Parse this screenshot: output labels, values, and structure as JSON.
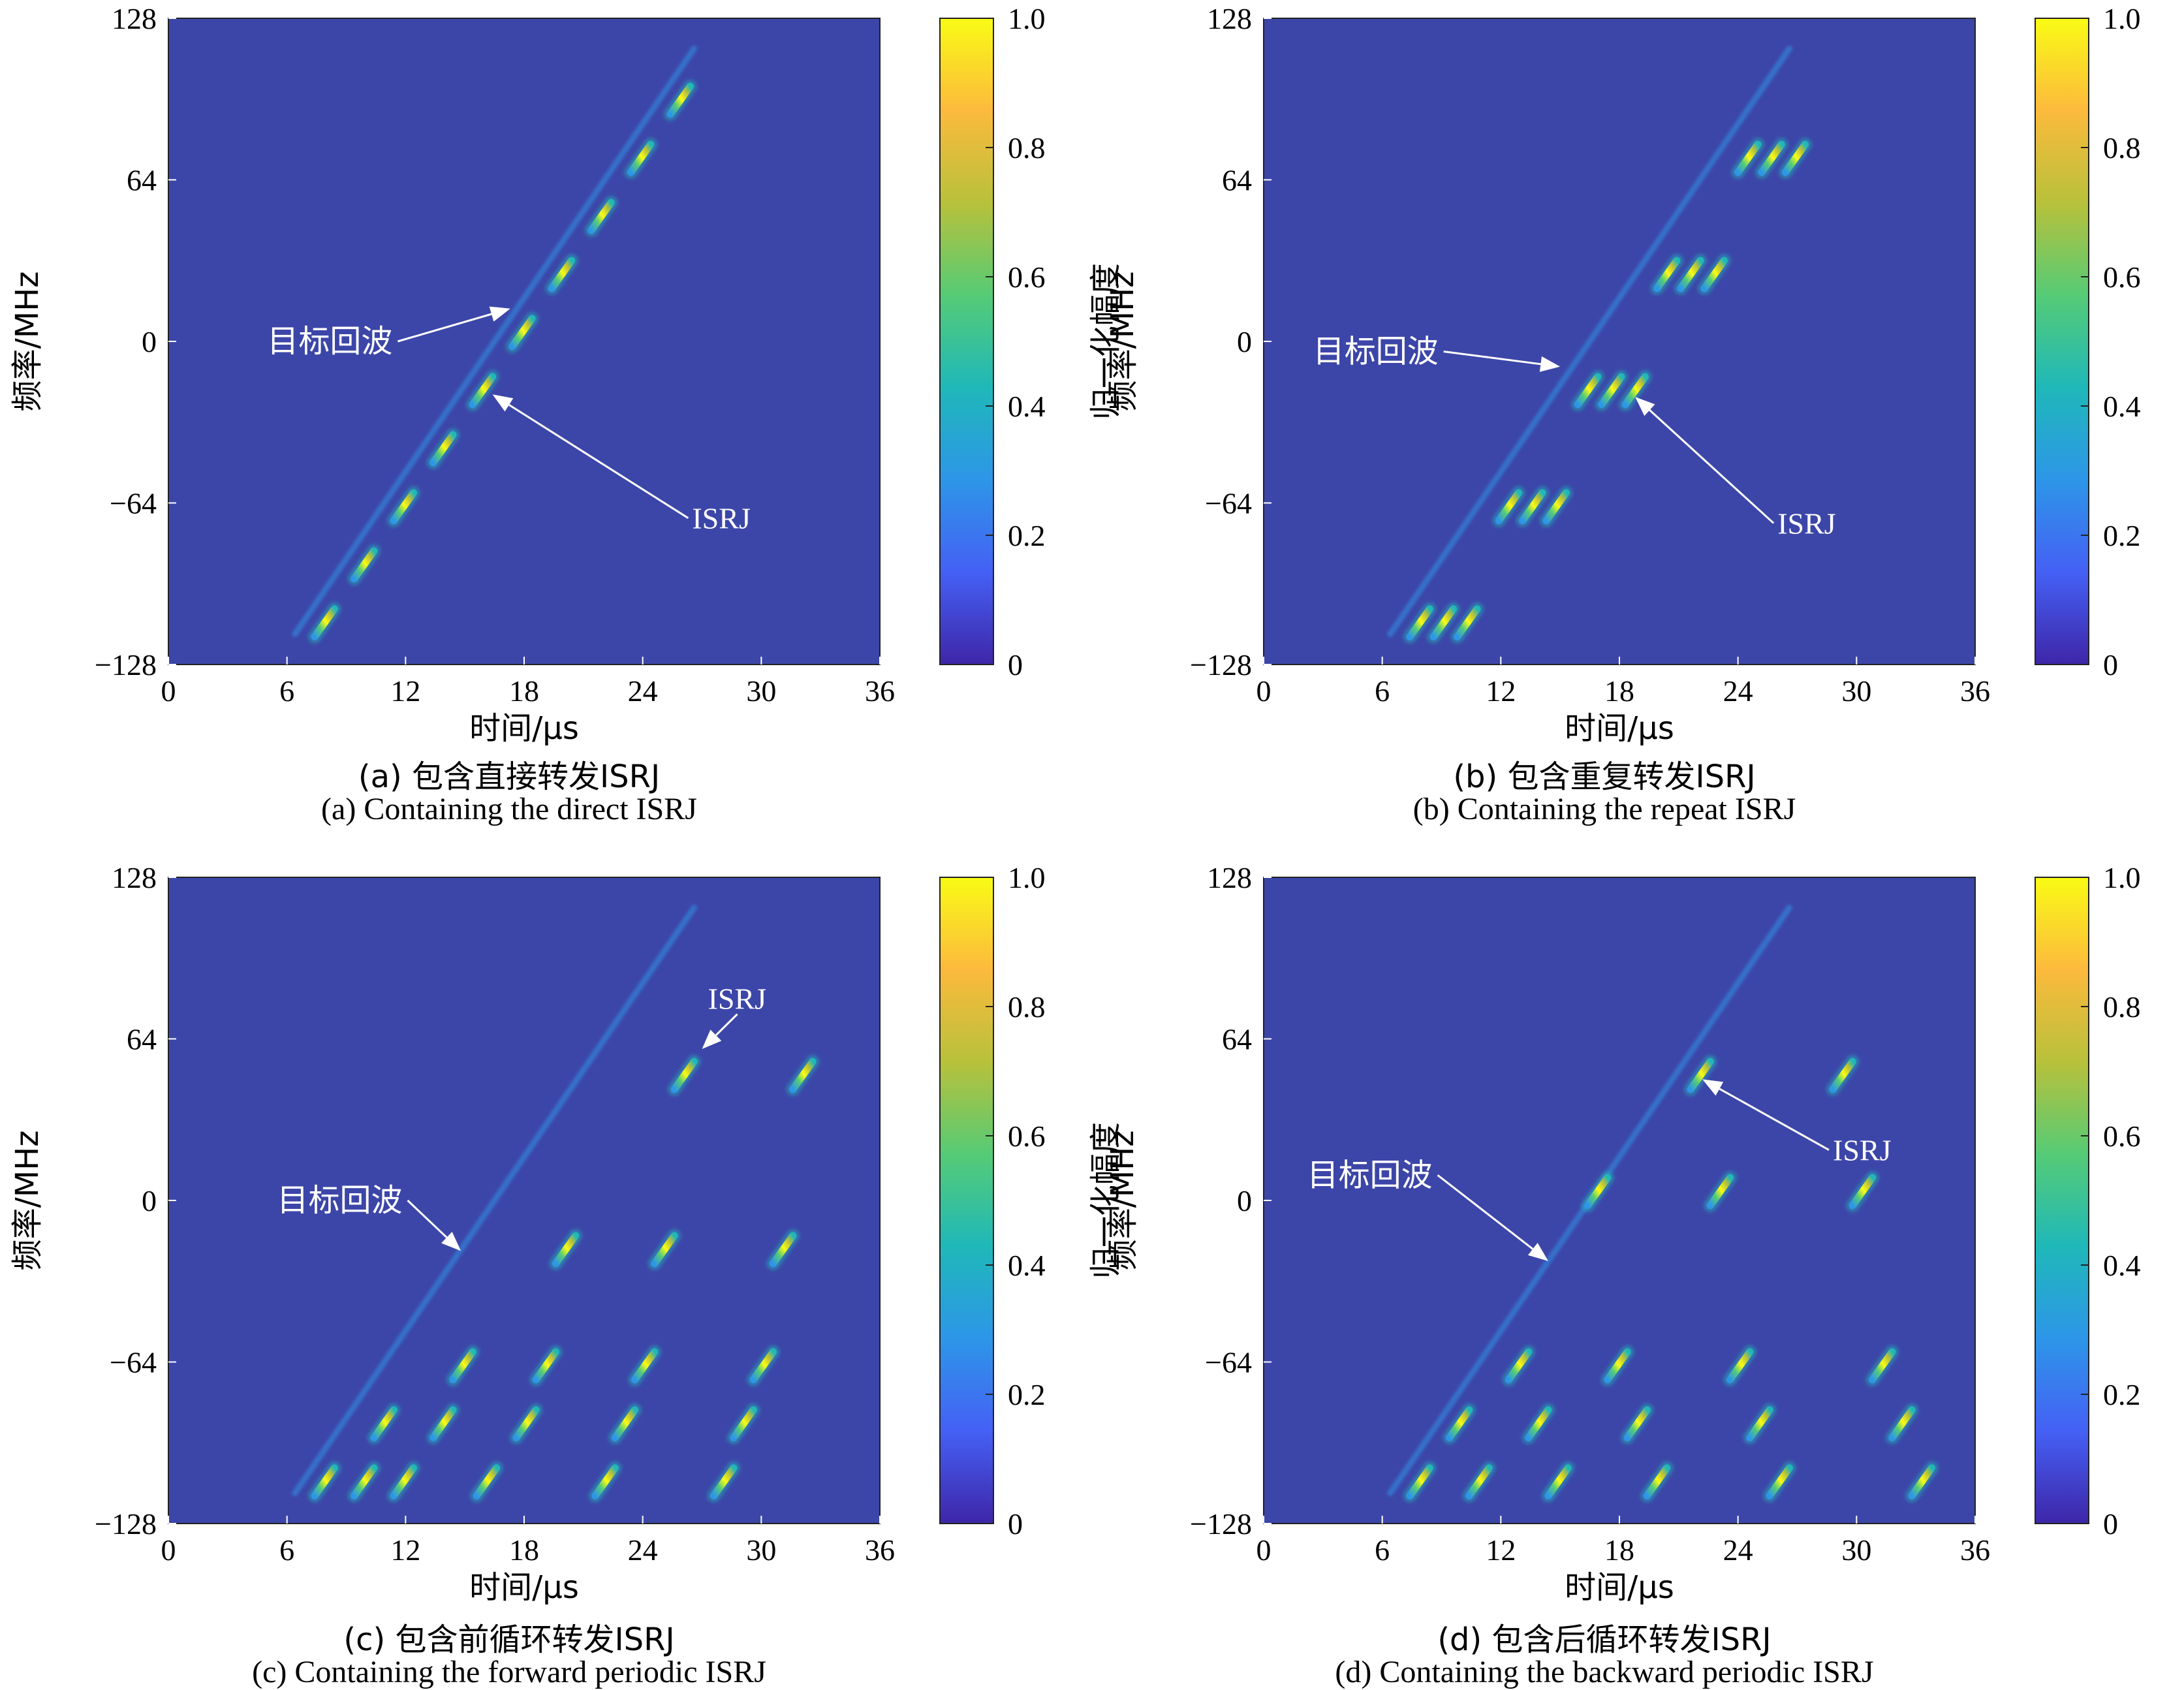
{
  "colors": {
    "background": "#3c46a8",
    "colormap": [
      "#3e26a8",
      "#4560f5",
      "#2d96e8",
      "#1fb8b9",
      "#55cb76",
      "#b8c13b",
      "#fcba3d",
      "#f9fb15"
    ]
  },
  "chart_data": [
    {
      "type": "heatmap",
      "subtitle_cn": "(a) 包含直接转发ISRJ",
      "subtitle_en": "(a) Containing the direct ISRJ",
      "xlabel": "时间/μs",
      "ylabel": "频率/MHz",
      "colorbar_label": "归一化幅度",
      "xlim": [
        0,
        36
      ],
      "ylim": [
        -128,
        128
      ],
      "xticks": [
        "0",
        "6",
        "12",
        "18",
        "24",
        "30",
        "36"
      ],
      "yticks": [
        "−128",
        "−64",
        "0",
        "64",
        "128"
      ],
      "colorbar_ticks": [
        "0",
        "0.2",
        "0.4",
        "0.6",
        "0.8",
        "1.0"
      ],
      "echo": {
        "x": [
          6.4,
          26.6
        ],
        "y": [
          -116,
          116
        ],
        "intensity": 0.25
      },
      "jamming": [
        {
          "t0": 7.4,
          "t1": 8.4,
          "f0": -117,
          "f1": -106
        },
        {
          "t0": 9.4,
          "t1": 10.4,
          "f0": -94,
          "f1": -83
        },
        {
          "t0": 11.4,
          "t1": 12.4,
          "f0": -71,
          "f1": -60
        },
        {
          "t0": 13.4,
          "t1": 14.4,
          "f0": -48,
          "f1": -37
        },
        {
          "t0": 15.4,
          "t1": 16.4,
          "f0": -25,
          "f1": -14
        },
        {
          "t0": 17.4,
          "t1": 18.4,
          "f0": -2,
          "f1": 9
        },
        {
          "t0": 19.4,
          "t1": 20.4,
          "f0": 21,
          "f1": 32
        },
        {
          "t0": 21.4,
          "t1": 22.4,
          "f0": 44,
          "f1": 55
        },
        {
          "t0": 23.4,
          "t1": 24.4,
          "f0": 67,
          "f1": 78
        },
        {
          "t0": 25.4,
          "t1": 26.4,
          "f0": 90,
          "f1": 101
        }
      ],
      "annotations": [
        {
          "text": "目标回波",
          "x": 5.0,
          "y": 0,
          "arrow_to": [
            17.3,
            13
          ]
        },
        {
          "text": "ISRJ",
          "x": 26.5,
          "y": -70,
          "arrow_to": [
            16.4,
            -21
          ]
        }
      ]
    },
    {
      "type": "heatmap",
      "subtitle_cn": "(b) 包含重复转发ISRJ",
      "subtitle_en": "(b) Containing the repeat ISRJ",
      "xlabel": "时间/μs",
      "ylabel": "频率/MHz",
      "colorbar_label": "归一化幅度",
      "xlim": [
        0,
        36
      ],
      "ylim": [
        -128,
        128
      ],
      "xticks": [
        "0",
        "6",
        "12",
        "18",
        "24",
        "30",
        "36"
      ],
      "yticks": [
        "−128",
        "−64",
        "0",
        "64",
        "128"
      ],
      "colorbar_ticks": [
        "0",
        "0.2",
        "0.4",
        "0.6",
        "0.8",
        "1.0"
      ],
      "echo": {
        "x": [
          6.4,
          26.6
        ],
        "y": [
          -116,
          116
        ],
        "intensity": 0.25
      },
      "jamming": [
        {
          "t0": 7.4,
          "t1": 8.4,
          "f0": -117,
          "f1": -106
        },
        {
          "t0": 8.6,
          "t1": 9.6,
          "f0": -117,
          "f1": -106
        },
        {
          "t0": 9.8,
          "t1": 10.8,
          "f0": -117,
          "f1": -106
        },
        {
          "t0": 11.9,
          "t1": 12.9,
          "f0": -71,
          "f1": -60
        },
        {
          "t0": 13.1,
          "t1": 14.1,
          "f0": -71,
          "f1": -60
        },
        {
          "t0": 14.3,
          "t1": 15.3,
          "f0": -71,
          "f1": -60
        },
        {
          "t0": 15.9,
          "t1": 16.9,
          "f0": -25,
          "f1": -14
        },
        {
          "t0": 17.1,
          "t1": 18.1,
          "f0": -25,
          "f1": -14
        },
        {
          "t0": 18.3,
          "t1": 19.3,
          "f0": -25,
          "f1": -14
        },
        {
          "t0": 19.9,
          "t1": 20.9,
          "f0": 21,
          "f1": 32
        },
        {
          "t0": 21.1,
          "t1": 22.1,
          "f0": 21,
          "f1": 32
        },
        {
          "t0": 22.3,
          "t1": 23.3,
          "f0": 21,
          "f1": 32
        },
        {
          "t0": 24.0,
          "t1": 25.0,
          "f0": 67,
          "f1": 78
        },
        {
          "t0": 25.2,
          "t1": 26.2,
          "f0": 67,
          "f1": 78
        },
        {
          "t0": 26.4,
          "t1": 27.4,
          "f0": 67,
          "f1": 78
        }
      ],
      "annotations": [
        {
          "text": "目标回波",
          "x": 2.5,
          "y": -4,
          "arrow_to": [
            15.0,
            -10
          ]
        },
        {
          "text": "ISRJ",
          "x": 26.0,
          "y": -72,
          "arrow_to": [
            18.8,
            -22
          ]
        }
      ]
    },
    {
      "type": "heatmap",
      "subtitle_cn": "(c) 包含前循环转发ISRJ",
      "subtitle_en": "(c) Containing the forward periodic ISRJ",
      "xlabel": "时间/μs",
      "ylabel": "频率/MHz",
      "colorbar_label": "归一化幅度",
      "xlim": [
        0,
        36
      ],
      "ylim": [
        -128,
        128
      ],
      "xticks": [
        "0",
        "6",
        "12",
        "18",
        "24",
        "30",
        "36"
      ],
      "yticks": [
        "−128",
        "−64",
        "0",
        "64",
        "128"
      ],
      "colorbar_ticks": [
        "0",
        "0.2",
        "0.4",
        "0.6",
        "0.8",
        "1.0"
      ],
      "echo": {
        "x": [
          6.4,
          26.6
        ],
        "y": [
          -116,
          116
        ],
        "intensity": 0.25
      },
      "jamming": [
        {
          "t0": 7.4,
          "t1": 8.4,
          "f0": -117,
          "f1": -106
        },
        {
          "t0": 9.4,
          "t1": 10.4,
          "f0": -117,
          "f1": -106
        },
        {
          "t0": 11.4,
          "t1": 12.4,
          "f0": -117,
          "f1": -106
        },
        {
          "t0": 10.4,
          "t1": 11.4,
          "f0": -94,
          "f1": -83
        },
        {
          "t0": 13.4,
          "t1": 14.4,
          "f0": -94,
          "f1": -83
        },
        {
          "t0": 14.4,
          "t1": 15.4,
          "f0": -71,
          "f1": -60
        },
        {
          "t0": 15.6,
          "t1": 16.6,
          "f0": -117,
          "f1": -106
        },
        {
          "t0": 17.6,
          "t1": 18.6,
          "f0": -94,
          "f1": -83
        },
        {
          "t0": 18.6,
          "t1": 19.6,
          "f0": -71,
          "f1": -60
        },
        {
          "t0": 19.6,
          "t1": 20.6,
          "f0": -25,
          "f1": -14
        },
        {
          "t0": 21.6,
          "t1": 22.6,
          "f0": -117,
          "f1": -106
        },
        {
          "t0": 22.6,
          "t1": 23.6,
          "f0": -94,
          "f1": -83
        },
        {
          "t0": 23.6,
          "t1": 24.6,
          "f0": -71,
          "f1": -60
        },
        {
          "t0": 24.6,
          "t1": 25.6,
          "f0": -25,
          "f1": -14
        },
        {
          "t0": 25.6,
          "t1": 26.6,
          "f0": 44,
          "f1": 55
        },
        {
          "t0": 27.6,
          "t1": 28.6,
          "f0": -117,
          "f1": -106
        },
        {
          "t0": 28.6,
          "t1": 29.6,
          "f0": -94,
          "f1": -83
        },
        {
          "t0": 29.6,
          "t1": 30.6,
          "f0": -71,
          "f1": -60
        },
        {
          "t0": 30.6,
          "t1": 31.6,
          "f0": -25,
          "f1": -14
        },
        {
          "t0": 31.6,
          "t1": 32.6,
          "f0": 44,
          "f1": 55
        }
      ],
      "annotations": [
        {
          "text": "目标回波",
          "x": 5.5,
          "y": 0,
          "arrow_to": [
            14.8,
            -20
          ]
        },
        {
          "text": "ISRJ",
          "x": 27.3,
          "y": 80,
          "arrow_to": [
            27.0,
            60
          ]
        }
      ]
    },
    {
      "type": "heatmap",
      "subtitle_cn": "(d) 包含后循环转发ISRJ",
      "subtitle_en": "(d) Containing the backward periodic ISRJ",
      "xlabel": "时间/μs",
      "ylabel": "频率/MHz",
      "colorbar_label": "归一化幅度",
      "xlim": [
        0,
        36
      ],
      "ylim": [
        -128,
        128
      ],
      "xticks": [
        "0",
        "6",
        "12",
        "18",
        "24",
        "30",
        "36"
      ],
      "yticks": [
        "−128",
        "−64",
        "0",
        "64",
        "128"
      ],
      "colorbar_ticks": [
        "0",
        "0.2",
        "0.4",
        "0.6",
        "0.8",
        "1.0"
      ],
      "echo": {
        "x": [
          6.4,
          26.6
        ],
        "y": [
          -116,
          116
        ],
        "intensity": 0.25
      },
      "jamming": [
        {
          "t0": 7.4,
          "t1": 8.4,
          "f0": -117,
          "f1": -106
        },
        {
          "t0": 9.4,
          "t1": 10.4,
          "f0": -94,
          "f1": -83
        },
        {
          "t0": 10.4,
          "t1": 11.4,
          "f0": -117,
          "f1": -106
        },
        {
          "t0": 12.4,
          "t1": 13.4,
          "f0": -71,
          "f1": -60
        },
        {
          "t0": 13.4,
          "t1": 14.4,
          "f0": -94,
          "f1": -83
        },
        {
          "t0": 14.4,
          "t1": 15.4,
          "f0": -117,
          "f1": -106
        },
        {
          "t0": 16.4,
          "t1": 17.4,
          "f0": -2,
          "f1": 9
        },
        {
          "t0": 17.4,
          "t1": 18.4,
          "f0": -71,
          "f1": -60
        },
        {
          "t0": 18.4,
          "t1": 19.4,
          "f0": -94,
          "f1": -83
        },
        {
          "t0": 19.4,
          "t1": 20.4,
          "f0": -117,
          "f1": -106
        },
        {
          "t0": 21.6,
          "t1": 22.6,
          "f0": 44,
          "f1": 55
        },
        {
          "t0": 22.6,
          "t1": 23.6,
          "f0": -2,
          "f1": 9
        },
        {
          "t0": 23.6,
          "t1": 24.6,
          "f0": -71,
          "f1": -60
        },
        {
          "t0": 24.6,
          "t1": 25.6,
          "f0": -94,
          "f1": -83
        },
        {
          "t0": 25.6,
          "t1": 26.6,
          "f0": -117,
          "f1": -106
        },
        {
          "t0": 28.8,
          "t1": 29.8,
          "f0": 44,
          "f1": 55
        },
        {
          "t0": 29.8,
          "t1": 30.8,
          "f0": -2,
          "f1": 9
        },
        {
          "t0": 30.8,
          "t1": 31.8,
          "f0": -71,
          "f1": -60
        },
        {
          "t0": 31.8,
          "t1": 32.8,
          "f0": -94,
          "f1": -83
        },
        {
          "t0": 32.8,
          "t1": 33.8,
          "f0": -117,
          "f1": -106
        }
      ],
      "annotations": [
        {
          "text": "目标回波",
          "x": 2.2,
          "y": 10,
          "arrow_to": [
            14.4,
            -24
          ]
        },
        {
          "text": "ISRJ",
          "x": 28.8,
          "y": 20,
          "arrow_to": [
            22.2,
            48
          ]
        }
      ]
    }
  ]
}
